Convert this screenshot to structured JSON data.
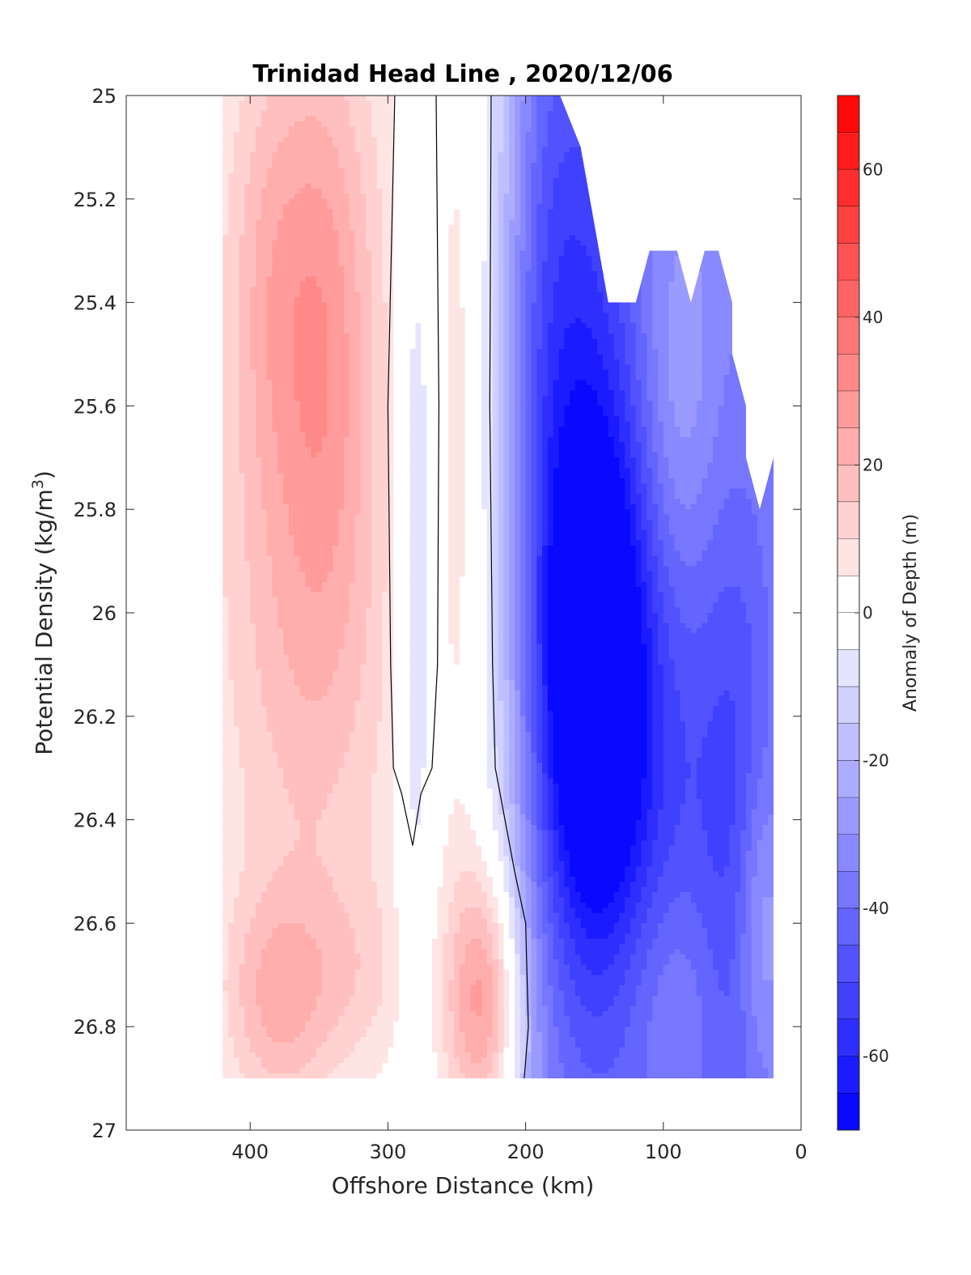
{
  "chart_data": {
    "type": "heatmap",
    "title": "Trinidad Head Line , 2020/12/06",
    "xlabel": "Offshore Distance (km)",
    "ylabel_main": "Potential Density (kg/m",
    "ylabel_sup": "3",
    "ylabel_end": ")",
    "colorbar_label": "Anomaly of Depth (m)",
    "xlim": [
      490,
      0
    ],
    "ylim": [
      25,
      27
    ],
    "x_reversed": true,
    "y_reversed": true,
    "x_ticks": [
      400,
      300,
      200,
      100,
      0
    ],
    "x_tick_labels": [
      "400",
      "300",
      "200",
      "100",
      "0"
    ],
    "y_ticks": [
      25,
      25.2,
      25.4,
      25.6,
      25.8,
      26,
      26.2,
      26.4,
      26.6,
      26.8,
      27
    ],
    "y_tick_labels": [
      "25",
      "25.2",
      "25.4",
      "25.6",
      "25.8",
      "26",
      "26.2",
      "26.4",
      "26.6",
      "26.8",
      "27"
    ],
    "color_limits": [
      -70,
      70
    ],
    "contour_step": 5,
    "colorbar_ticks": [
      60,
      40,
      20,
      0,
      -20,
      -40,
      -60
    ],
    "colorbar_tick_labels": [
      "60",
      "40",
      "20",
      "0",
      "-20",
      "-40",
      "-60"
    ],
    "zero_contour": true,
    "grid": false,
    "data_extent": {
      "x_min": 20,
      "x_max": 420,
      "y_min": 25,
      "y_max": 26.9
    },
    "x": [
      420,
      400,
      380,
      360,
      340,
      320,
      300,
      280,
      260,
      240,
      220,
      200,
      180,
      160,
      140,
      120,
      100,
      80,
      60,
      40,
      20
    ],
    "y": [
      25.0,
      25.1,
      25.2,
      25.3,
      25.4,
      25.5,
      25.6,
      25.7,
      25.8,
      25.9,
      26.0,
      26.1,
      26.2,
      26.3,
      26.4,
      26.5,
      26.6,
      26.7,
      26.8,
      26.9
    ],
    "top_boundary": [
      {
        "x": 420,
        "y": 25.0
      },
      {
        "x": 175,
        "y": 25.0
      },
      {
        "x": 160,
        "y": 25.1
      },
      {
        "x": 140,
        "y": 25.4
      },
      {
        "x": 120,
        "y": 25.4
      },
      {
        "x": 110,
        "y": 25.3
      },
      {
        "x": 90,
        "y": 25.3
      },
      {
        "x": 80,
        "y": 25.4
      },
      {
        "x": 70,
        "y": 25.3
      },
      {
        "x": 60,
        "y": 25.3
      },
      {
        "x": 50,
        "y": 25.4
      },
      {
        "x": 50,
        "y": 25.5
      },
      {
        "x": 40,
        "y": 25.6
      },
      {
        "x": 40,
        "y": 25.7
      },
      {
        "x": 30,
        "y": 25.8
      },
      {
        "x": 20,
        "y": 25.7
      },
      {
        "x": 20,
        "y": 26.9
      }
    ]
  }
}
